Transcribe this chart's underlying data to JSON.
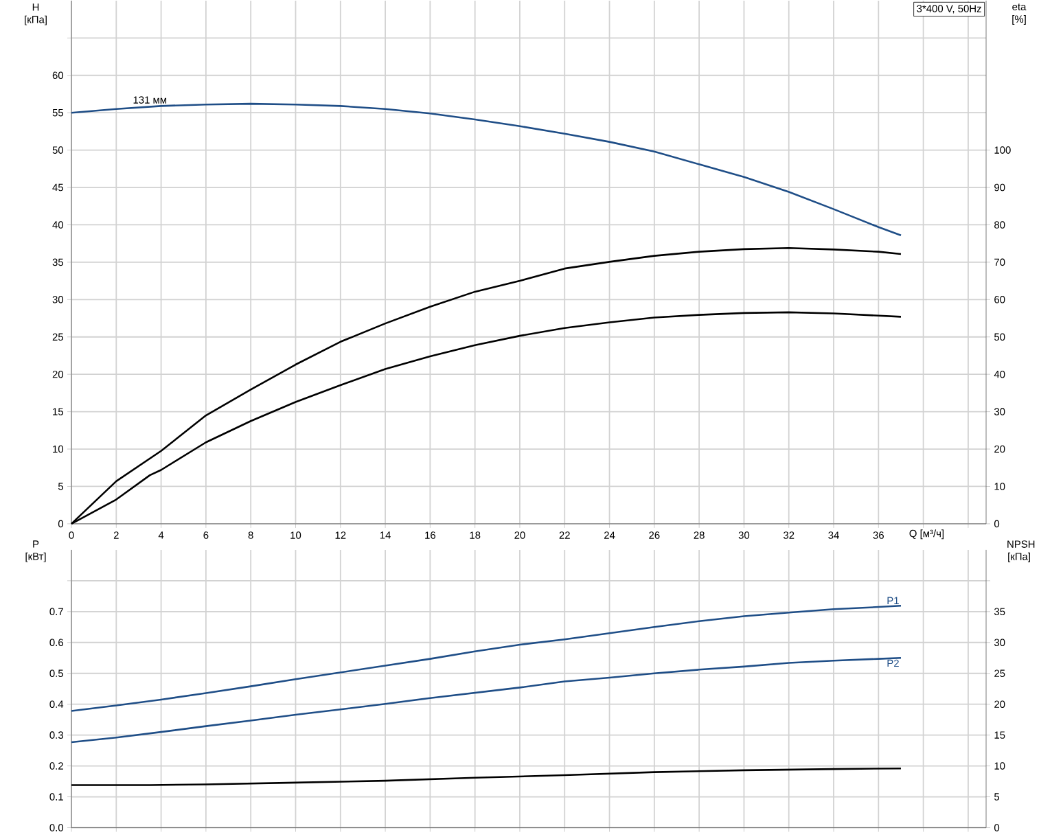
{
  "chart_data": [
    {
      "type": "line",
      "title": "3*400 V, 50Hz",
      "xlabel": "Q [м³/ч]",
      "ylabel": "H [кПа]",
      "y2label": "eta [%]",
      "xlim": [
        0,
        40.8
      ],
      "xticks": [
        0,
        2,
        4,
        6,
        8,
        10,
        12,
        14,
        16,
        18,
        20,
        22,
        24,
        26,
        28,
        30,
        32,
        34,
        36,
        {
          "value": 38,
          "label": null
        },
        {
          "value": 40,
          "label": null
        }
      ],
      "ylim": [
        0,
        70
      ],
      "yticks": [
        0,
        5,
        10,
        15,
        20,
        25,
        30,
        35,
        40,
        45,
        50,
        55,
        60,
        {
          "value": 65,
          "label": null
        }
      ],
      "y2lim": [
        0,
        140
      ],
      "y2ticks": [
        0,
        10,
        20,
        30,
        40,
        50,
        60,
        70,
        80,
        90,
        100
      ],
      "grid": true,
      "marker": "none",
      "line_style": "solid",
      "annotations": [
        {
          "text": "131 мм",
          "x": 3.5,
          "y": 56
        }
      ],
      "series": [
        {
          "color": "#1f4e87",
          "x": [
            0,
            2,
            4,
            6,
            8,
            10,
            12,
            14,
            16,
            18,
            20,
            22,
            24,
            26,
            28,
            30,
            32,
            34,
            36,
            37
          ],
          "values": [
            55,
            55.5,
            55.9,
            56.1,
            56.2,
            56.1,
            55.9,
            55.5,
            54.9,
            54.1,
            53.2,
            52.2,
            51.1,
            49.8,
            48.1,
            46.4,
            44.4,
            42.1,
            39.7,
            38.6
          ]
        },
        {
          "color": "#000000",
          "axis": "y2",
          "x": [
            0,
            2,
            4,
            6,
            8,
            10,
            12,
            14,
            16,
            18,
            20,
            22,
            24,
            26,
            28,
            30,
            32,
            34,
            36,
            37
          ],
          "values": [
            0,
            11.4,
            19.5,
            29,
            35.9,
            42.6,
            48.7,
            53.6,
            58.1,
            62.1,
            65,
            68.3,
            70.1,
            71.7,
            72.8,
            73.5,
            73.8,
            73.4,
            72.8,
            72.2
          ]
        },
        {
          "color": "#000000",
          "axis": "y2",
          "x": [
            0,
            2,
            3.5,
            4,
            6,
            8,
            10,
            12,
            14,
            16,
            18,
            20,
            22,
            24,
            26,
            28,
            30,
            32,
            34,
            36,
            37
          ],
          "values": [
            0,
            6.5,
            13,
            14.4,
            21.8,
            27.5,
            32.6,
            37.1,
            41.4,
            44.8,
            47.8,
            50.3,
            52.4,
            53.9,
            55.2,
            55.9,
            56.4,
            56.6,
            56.3,
            55.7,
            55.4
          ]
        }
      ]
    },
    {
      "type": "line",
      "ylabel": "P [кВт]",
      "y2label": "NPSH [кПа]",
      "tick_labels": "y",
      "xlim": [
        0,
        40.8
      ],
      "xticks": [
        0,
        2,
        4,
        6,
        8,
        10,
        12,
        14,
        16,
        18,
        20,
        22,
        24,
        26,
        28,
        30,
        32,
        34,
        36,
        38,
        40
      ],
      "ylim": [
        0,
        0.9
      ],
      "yticks": [
        {
          "value": 0,
          "label": "0.0"
        },
        0.1,
        0.2,
        0.3,
        0.4,
        0.5,
        0.6,
        0.7,
        {
          "value": 0.8,
          "label": null
        }
      ],
      "y2lim": [
        0,
        45
      ],
      "y2ticks": [
        0,
        5,
        10,
        15,
        20,
        25,
        30,
        35,
        {
          "value": 40,
          "label": null
        }
      ],
      "grid": true,
      "marker": "none",
      "line_style": "solid",
      "series": [
        {
          "name": "P1",
          "color": "#1f4e87",
          "x": [
            0,
            2,
            4,
            6,
            8,
            10,
            12,
            14,
            16,
            18,
            20,
            22,
            24,
            26,
            28,
            30,
            32,
            34,
            36,
            37
          ],
          "values": [
            0.378,
            0.396,
            0.415,
            0.436,
            0.458,
            0.481,
            0.503,
            0.525,
            0.547,
            0.571,
            0.593,
            0.61,
            0.63,
            0.65,
            0.669,
            0.685,
            0.697,
            0.708,
            0.715,
            0.719
          ]
        },
        {
          "name": "P2",
          "color": "#1f4e87",
          "x": [
            0,
            2,
            4,
            6,
            8,
            10,
            12,
            14,
            16,
            18,
            20,
            22,
            24,
            26,
            28,
            30,
            32,
            34,
            36,
            37
          ],
          "values": [
            0.277,
            0.292,
            0.31,
            0.329,
            0.347,
            0.366,
            0.383,
            0.401,
            0.42,
            0.437,
            0.454,
            0.474,
            0.486,
            0.5,
            0.512,
            0.522,
            0.534,
            0.541,
            0.547,
            0.55
          ]
        },
        {
          "color": "#000000",
          "axis": "y2",
          "x": [
            0,
            2,
            3.5,
            6,
            10,
            14,
            18,
            22,
            26,
            30,
            34,
            37
          ],
          "values": [
            6.9,
            6.9,
            6.9,
            7.0,
            7.3,
            7.6,
            8.1,
            8.5,
            9.0,
            9.3,
            9.5,
            9.6
          ]
        }
      ]
    }
  ]
}
